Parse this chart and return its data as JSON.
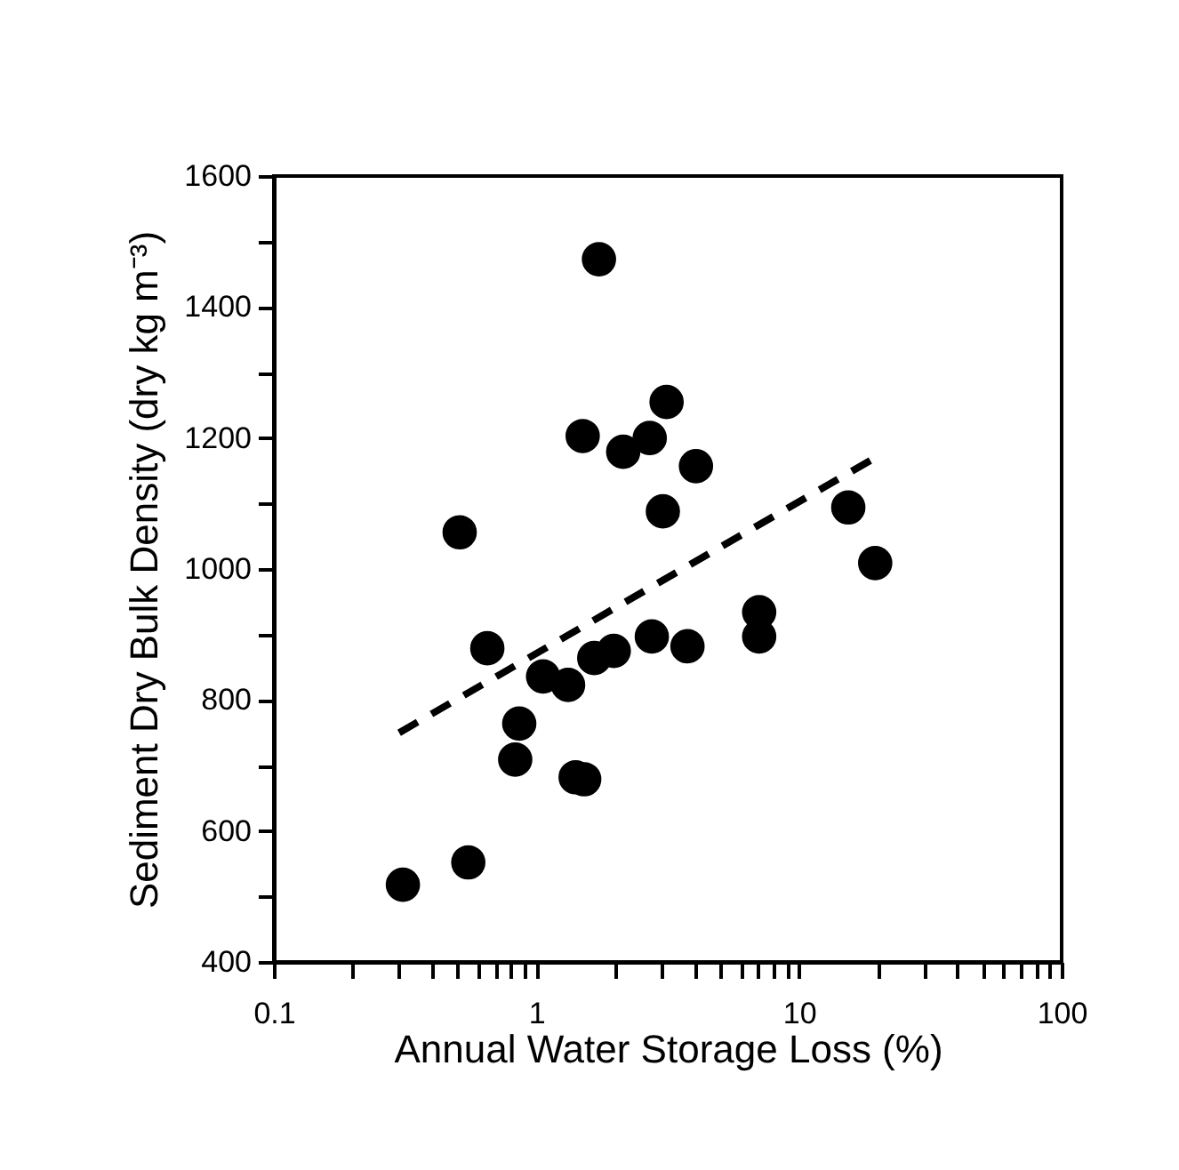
{
  "chart_data": {
    "type": "scatter",
    "xlabel": "Annual Water Storage Loss (%)",
    "ylabel": "Sediment  Dry Bulk Density (dry kg m⁻³)",
    "log": "x",
    "xlim": [
      0.1,
      100
    ],
    "ylim": [
      400,
      1600
    ],
    "xticks": [
      0.1,
      {
        "value": 0.2,
        "label": null
      },
      {
        "value": 0.3,
        "label": null
      },
      {
        "value": 0.4,
        "label": null
      },
      {
        "value": 0.5,
        "label": null
      },
      {
        "value": 0.6,
        "label": null
      },
      {
        "value": 0.7,
        "label": null
      },
      {
        "value": 0.8,
        "label": null
      },
      {
        "value": 0.9,
        "label": null
      },
      1,
      {
        "value": 2,
        "label": null
      },
      {
        "value": 3,
        "label": null
      },
      {
        "value": 4,
        "label": null
      },
      {
        "value": 5,
        "label": null
      },
      {
        "value": 6,
        "label": null
      },
      {
        "value": 7,
        "label": null
      },
      {
        "value": 8,
        "label": null
      },
      {
        "value": 9,
        "label": null
      },
      10,
      {
        "value": 20,
        "label": null
      },
      {
        "value": 30,
        "label": null
      },
      {
        "value": 40,
        "label": null
      },
      {
        "value": 50,
        "label": null
      },
      {
        "value": 60,
        "label": null
      },
      {
        "value": 70,
        "label": null
      },
      {
        "value": 80,
        "label": null
      },
      {
        "value": 90,
        "label": null
      },
      100
    ],
    "yticks": [
      400,
      {
        "value": 500,
        "label": null
      },
      600,
      {
        "value": 700,
        "label": null
      },
      800,
      {
        "value": 900,
        "label": null
      },
      1000,
      {
        "value": 1100,
        "label": null
      },
      1200,
      {
        "value": 1300,
        "label": null
      },
      1400,
      {
        "value": 1500,
        "label": null
      },
      1600
    ],
    "grid": false,
    "marker": "circle",
    "series": [
      {
        "color": "#000000",
        "x": [
          1.73,
          3.13,
          1.5,
          2.14,
          2.7,
          4.05,
          3.03,
          0.51,
          15.4,
          19.5,
          7.05,
          7.05,
          0.65,
          2.75,
          3.76,
          1.97,
          1.66,
          1.06,
          1.32,
          0.86,
          0.83,
          1.41,
          1.52,
          0.55,
          0.31
        ],
        "values": [
          1473,
          1255,
          1203,
          1179,
          1200,
          1157,
          1088,
          1056,
          1094,
          1009,
          934,
          897,
          879,
          897,
          882,
          875,
          864,
          836,
          823,
          764,
          709,
          682,
          679,
          552,
          518
        ]
      },
      {
        "type": "line",
        "color": "#000000",
        "line_style": "dashed",
        "marker": "none",
        "x": [
          0.3,
          20.1
        ],
        "values": [
          750,
          1173
        ]
      }
    ]
  }
}
